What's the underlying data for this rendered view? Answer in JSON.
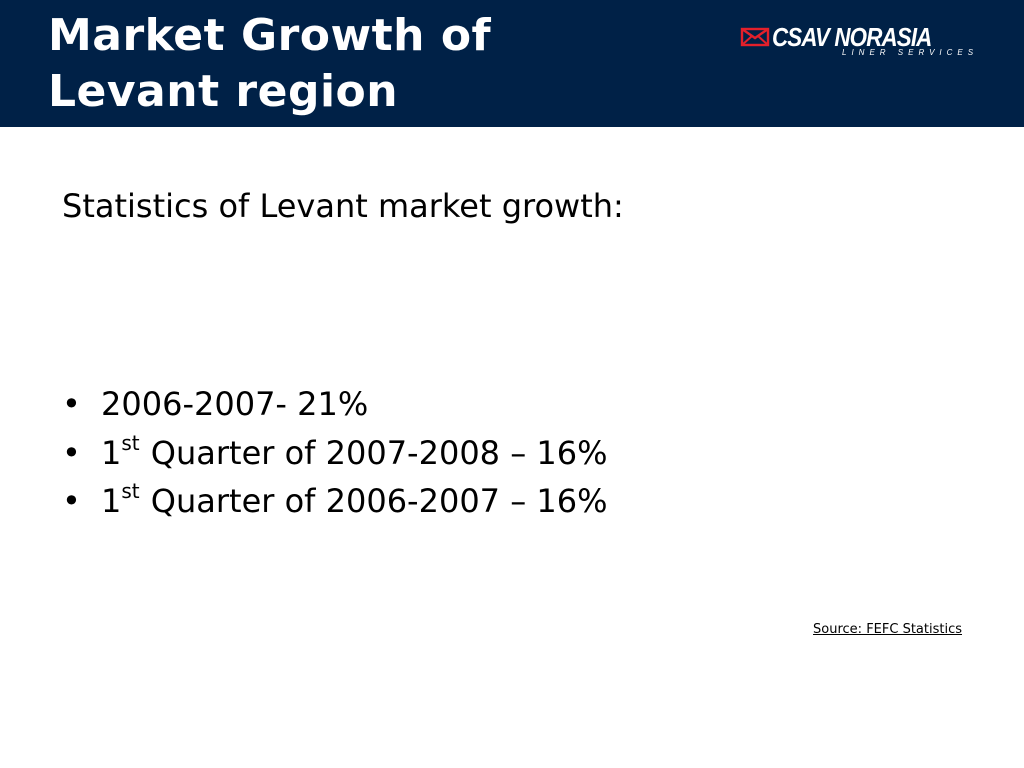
{
  "colors": {
    "header_background": "#002147",
    "title_text": "#ffffff",
    "logo_accent": "#e3202b",
    "body_text": "#000000"
  },
  "header": {
    "title_line1": "Market Growth of",
    "title_line2": "Levant region",
    "logo": {
      "icon": "envelope-icon",
      "name": "CSAV NORASIA",
      "tagline": "LINER SERVICES"
    }
  },
  "content": {
    "intro": "Statistics of Levant market growth:",
    "bullet_symbol": "•",
    "items": [
      {
        "ordinal": "",
        "suffix": "",
        "text": "2006-2007- 21%"
      },
      {
        "ordinal": "1",
        "suffix": "st",
        "text": " Quarter of 2007-2008 – 16%"
      },
      {
        "ordinal": "1",
        "suffix": "st",
        "text": " Quarter of 2006-2007 – 16%"
      }
    ]
  },
  "footer": {
    "source": "Source: FEFC Statistics"
  }
}
